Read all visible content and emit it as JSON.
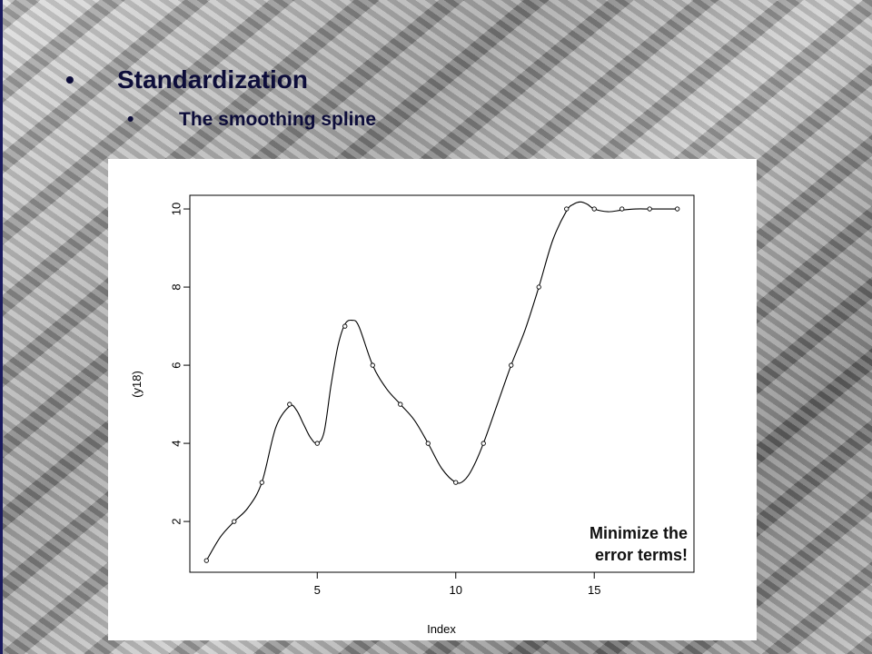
{
  "slide": {
    "bullet_1": "Standardization",
    "bullet_2": "The smoothing spline",
    "bullet_glyph": "•"
  },
  "annotation": {
    "line1": "Minimize the",
    "line2": "error terms!"
  },
  "chart_data": {
    "type": "scatter",
    "xlabel": "Index",
    "ylabel": "(y18)",
    "xlim": [
      0.4,
      18.6
    ],
    "ylim": [
      0.7,
      10.35
    ],
    "xticks": [
      5,
      10,
      15
    ],
    "yticks": [
      2,
      4,
      6,
      8,
      10
    ],
    "points": {
      "x": [
        1,
        2,
        3,
        4,
        5,
        6,
        7,
        8,
        9,
        10,
        11,
        12,
        13,
        14,
        15,
        16,
        17,
        18
      ],
      "y": [
        1,
        2,
        3,
        5,
        4,
        7,
        6,
        5,
        4,
        3,
        4,
        6,
        8,
        10,
        10,
        10,
        10,
        10
      ]
    },
    "spline": {
      "x": [
        1,
        1.5,
        2,
        2.5,
        3,
        3.5,
        4,
        4.25,
        4.5,
        4.75,
        5,
        5.25,
        5.5,
        5.75,
        6,
        6.25,
        6.5,
        7,
        7.5,
        8,
        8.5,
        9,
        9.5,
        10,
        10.3,
        10.6,
        11,
        11.5,
        12,
        12.5,
        13,
        13.5,
        14,
        14.25,
        14.5,
        14.75,
        15,
        15.5,
        16,
        16.5,
        17,
        17.5,
        18
      ],
      "y": [
        1,
        1.6,
        2.0,
        2.35,
        3.0,
        4.4,
        4.95,
        4.85,
        4.5,
        4.15,
        4.0,
        4.3,
        5.5,
        6.5,
        7.05,
        7.15,
        7.0,
        6.0,
        5.4,
        5.0,
        4.6,
        4.0,
        3.35,
        3.0,
        3.05,
        3.35,
        4.0,
        5.0,
        6.0,
        6.9,
        8.0,
        9.2,
        9.95,
        10.12,
        10.18,
        10.12,
        10.0,
        9.93,
        9.97,
        10.0,
        10.0,
        10.0,
        10.0
      ]
    },
    "grid": false,
    "legend": "none"
  }
}
